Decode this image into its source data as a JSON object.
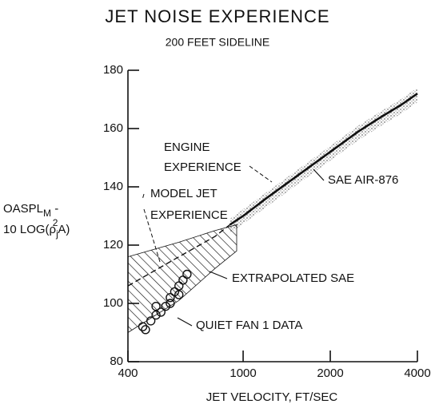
{
  "chart_data": {
    "type": "line",
    "title": "JET NOISE EXPERIENCE",
    "subtitle": "200 FEET SIDELINE",
    "xlabel": "JET VELOCITY, FT/SEC",
    "ylabel": {
      "l1": "OASPL",
      "l1_sub": "M",
      "l1_end": " -",
      "l2": "10 LOG(ρ",
      "l2_sub": "j",
      "l2_sup": "2",
      "l2_end": "A)"
    },
    "xscale": "log",
    "xlim": [
      400,
      4000
    ],
    "xticks": [
      400,
      1000,
      2000,
      4000
    ],
    "ylim": [
      80,
      180
    ],
    "yticks": [
      80,
      100,
      120,
      140,
      160,
      180
    ],
    "regions": [
      {
        "name": [
          "ENGINE",
          "EXPERIENCE"
        ],
        "pattern": "dots",
        "x": [
          900,
          1200,
          1500,
          2000,
          2500,
          3000,
          3500,
          4000
        ],
        "upper": [
          129,
          138,
          145,
          154,
          161,
          166,
          170,
          174
        ],
        "lower": [
          124,
          133,
          140,
          149,
          156,
          161,
          165,
          169
        ]
      },
      {
        "name": [
          "MODEL JET",
          "EXPERIENCE"
        ],
        "pattern": "hatch",
        "x": [
          400,
          600,
          800,
          950
        ],
        "upper": [
          116,
          121,
          125,
          127
        ],
        "lower": [
          90,
          101,
          112,
          118
        ]
      }
    ],
    "series": [
      {
        "name": "SAE AIR-876",
        "style": "solid",
        "color": "#111",
        "x": [
          900,
          1000,
          1200,
          1500,
          2000,
          2500,
          3000,
          3500,
          4000
        ],
        "values": [
          127,
          130,
          136,
          143,
          152,
          159,
          164,
          168,
          172
        ]
      },
      {
        "name": "EXTRAPOLATED SAE",
        "style": "dashed",
        "color": "#111",
        "x": [
          400,
          600,
          800,
          900
        ],
        "values": [
          106,
          116,
          123,
          127
        ]
      },
      {
        "name": "QUIET FAN 1 DATA",
        "style": "circles",
        "color": "#111",
        "x": [
          450,
          460,
          480,
          500,
          500,
          520,
          540,
          560,
          560,
          580,
          600,
          600,
          620,
          640
        ],
        "values": [
          92,
          91,
          94,
          96,
          99,
          97,
          99,
          102,
          100,
          104,
          106,
          103,
          108,
          110
        ]
      }
    ]
  }
}
